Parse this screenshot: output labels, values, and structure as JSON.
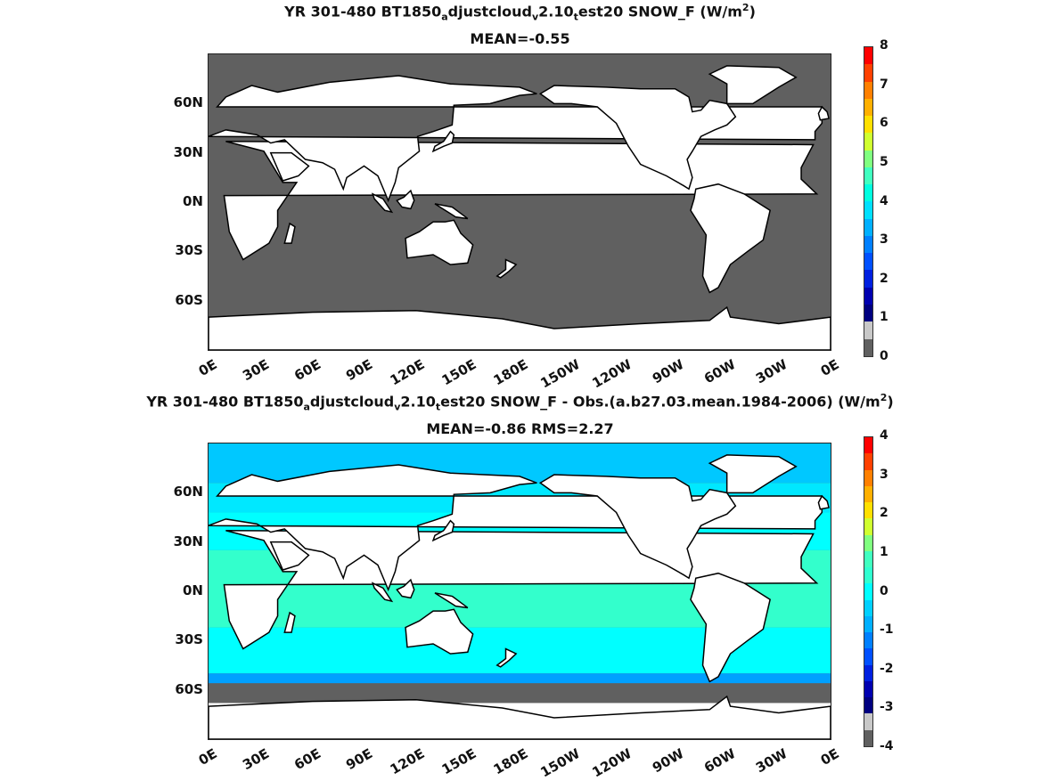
{
  "panels": [
    {
      "title_parts": [
        "YR 301-480 BT1850",
        "a",
        "djustcloud",
        "v",
        "2.10",
        "t",
        "est20  SNOW_F (W/m",
        "2",
        ")"
      ],
      "subtitle": "MEAN=-0.55",
      "lat_labels": [
        "60N",
        "30N",
        "0N",
        "30S",
        "60S"
      ],
      "lon_labels": [
        "0E",
        "30E",
        "60E",
        "90E",
        "120E",
        "150E",
        "180E",
        "150W",
        "120W",
        "90W",
        "60W",
        "30W",
        "0E"
      ],
      "colorbar": {
        "ticks": [
          "8",
          "7",
          "6",
          "5",
          "4",
          "3",
          "2",
          "1",
          "0"
        ],
        "colors": [
          "#ff0000",
          "#ff4000",
          "#ff8000",
          "#ffb000",
          "#ffe000",
          "#d0ff30",
          "#80ff80",
          "#40ffc0",
          "#00ffe0",
          "#00e0ff",
          "#00b0ff",
          "#0080ff",
          "#0050ff",
          "#0020e0",
          "#0000b0",
          "#000080",
          "#c8c8c8",
          "#606060"
        ]
      },
      "ocean_color": "#606060",
      "land_color": "#ffffff"
    },
    {
      "title_parts": [
        "YR 301-480 BT1850",
        "a",
        "djustcloud",
        "v",
        "2.10",
        "t",
        "est20 SNOW_F - Obs.(a.b27.03.mean.1984-2006) (W/m",
        "2",
        ")"
      ],
      "subtitle": "MEAN=-0.86 RMS=2.27",
      "lat_labels": [
        "60N",
        "30N",
        "0N",
        "30S",
        "60S"
      ],
      "lon_labels": [
        "0E",
        "30E",
        "60E",
        "90E",
        "120E",
        "150E",
        "180E",
        "150W",
        "120W",
        "90W",
        "60W",
        "30W",
        "0E"
      ],
      "colorbar": {
        "ticks": [
          "4",
          "3",
          "2",
          "1",
          "0",
          "-1",
          "-2",
          "-3",
          "-4"
        ],
        "colors": [
          "#ff0000",
          "#ff4000",
          "#ff8000",
          "#ffb000",
          "#ffe000",
          "#d0ff30",
          "#80ff80",
          "#40ffc0",
          "#30ffd0",
          "#00ffff",
          "#00d0ff",
          "#00b0ff",
          "#0080ff",
          "#0050ff",
          "#0020e0",
          "#0000b0",
          "#000080",
          "#c8c8c8",
          "#606060"
        ]
      },
      "bands": [
        {
          "from": 90,
          "to": 66,
          "color": "#00c8ff"
        },
        {
          "from": 66,
          "to": 48,
          "color": "#00e8ff"
        },
        {
          "from": 48,
          "to": 25,
          "color": "#00ffff"
        },
        {
          "from": 25,
          "to": -22,
          "color": "#33ffcc"
        },
        {
          "from": -22,
          "to": -50,
          "color": "#00ffff"
        },
        {
          "from": -50,
          "to": -56,
          "color": "#00a0ff"
        },
        {
          "from": -56,
          "to": -68,
          "color": "#606060"
        },
        {
          "from": -68,
          "to": -90,
          "color": "#ffffff"
        }
      ],
      "land_color": "#ffffff"
    }
  ]
}
